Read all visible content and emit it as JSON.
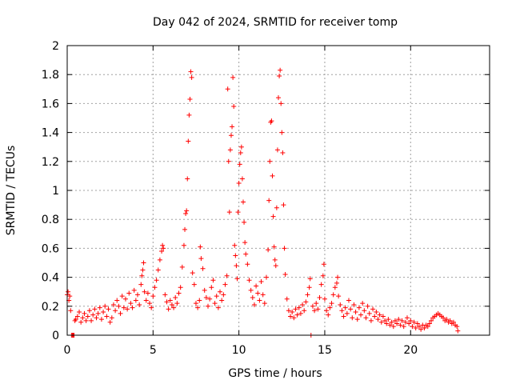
{
  "chart_data": {
    "type": "scatter",
    "title": "Day 042 of 2024, SRMTID for receiver tomp",
    "xlabel": "GPS time / hours",
    "ylabel": "SRMTID / TECUs",
    "xlim": [
      0,
      24.6
    ],
    "ylim": [
      0,
      2
    ],
    "x_ticks": [
      0,
      5,
      10,
      15,
      20
    ],
    "x_tick_labels": [
      "0",
      "5",
      "10",
      "15",
      "20"
    ],
    "y_ticks": [
      0,
      0.2,
      0.4,
      0.6,
      0.8,
      1,
      1.2,
      1.4,
      1.6,
      1.8,
      2
    ],
    "y_tick_labels": [
      "0",
      "0.2",
      "0.4",
      "0.6",
      "0.8",
      "1",
      "1.2",
      "1.4",
      "1.6",
      "1.8",
      "2"
    ],
    "grid": true,
    "marker": "+",
    "series": [
      {
        "name": "SRMTID",
        "color": "#ff0000",
        "points": [
          [
            0.0,
            0.28
          ],
          [
            0.05,
            0.3
          ],
          [
            0.1,
            0.24
          ],
          [
            0.15,
            0.27
          ],
          [
            0.2,
            0.17
          ],
          [
            0.25,
            0.0
          ],
          [
            0.3,
            0.0
          ],
          [
            0.35,
            0.0
          ],
          [
            0.4,
            0.0
          ],
          [
            0.45,
            0.1
          ],
          [
            0.5,
            0.11
          ],
          [
            0.6,
            0.13
          ],
          [
            0.7,
            0.16
          ],
          [
            0.8,
            0.09
          ],
          [
            0.9,
            0.12
          ],
          [
            1.0,
            0.15
          ],
          [
            1.1,
            0.1
          ],
          [
            1.2,
            0.13
          ],
          [
            1.3,
            0.17
          ],
          [
            1.4,
            0.1
          ],
          [
            1.5,
            0.14
          ],
          [
            1.6,
            0.18
          ],
          [
            1.7,
            0.12
          ],
          [
            1.8,
            0.15
          ],
          [
            1.9,
            0.19
          ],
          [
            2.0,
            0.11
          ],
          [
            2.1,
            0.16
          ],
          [
            2.2,
            0.2
          ],
          [
            2.3,
            0.13
          ],
          [
            2.4,
            0.18
          ],
          [
            2.5,
            0.09
          ],
          [
            2.6,
            0.12
          ],
          [
            2.7,
            0.21
          ],
          [
            2.8,
            0.17
          ],
          [
            2.9,
            0.24
          ],
          [
            3.0,
            0.2
          ],
          [
            3.1,
            0.15
          ],
          [
            3.2,
            0.27
          ],
          [
            3.3,
            0.19
          ],
          [
            3.4,
            0.25
          ],
          [
            3.5,
            0.18
          ],
          [
            3.6,
            0.29
          ],
          [
            3.7,
            0.22
          ],
          [
            3.8,
            0.19
          ],
          [
            3.9,
            0.31
          ],
          [
            4.0,
            0.24
          ],
          [
            4.1,
            0.28
          ],
          [
            4.2,
            0.21
          ],
          [
            4.3,
            0.35
          ],
          [
            4.35,
            0.41
          ],
          [
            4.4,
            0.45
          ],
          [
            4.45,
            0.5
          ],
          [
            4.5,
            0.3
          ],
          [
            4.6,
            0.24
          ],
          [
            4.7,
            0.29
          ],
          [
            4.8,
            0.22
          ],
          [
            4.9,
            0.19
          ],
          [
            5.0,
            0.27
          ],
          [
            5.1,
            0.33
          ],
          [
            5.2,
            0.38
          ],
          [
            5.3,
            0.45
          ],
          [
            5.4,
            0.52
          ],
          [
            5.5,
            0.58
          ],
          [
            5.55,
            0.62
          ],
          [
            5.6,
            0.6
          ],
          [
            5.7,
            0.28
          ],
          [
            5.8,
            0.23
          ],
          [
            5.9,
            0.18
          ],
          [
            6.0,
            0.24
          ],
          [
            6.1,
            0.21
          ],
          [
            6.2,
            0.19
          ],
          [
            6.3,
            0.26
          ],
          [
            6.4,
            0.22
          ],
          [
            6.5,
            0.29
          ],
          [
            6.6,
            0.33
          ],
          [
            6.7,
            0.47
          ],
          [
            6.8,
            0.62
          ],
          [
            6.85,
            0.73
          ],
          [
            6.9,
            0.84
          ],
          [
            6.95,
            0.86
          ],
          [
            7.0,
            1.08
          ],
          [
            7.05,
            1.34
          ],
          [
            7.1,
            1.52
          ],
          [
            7.15,
            1.63
          ],
          [
            7.2,
            1.82
          ],
          [
            7.25,
            1.78
          ],
          [
            7.3,
            0.43
          ],
          [
            7.4,
            0.35
          ],
          [
            7.5,
            0.22
          ],
          [
            7.6,
            0.19
          ],
          [
            7.7,
            0.24
          ],
          [
            7.75,
            0.61
          ],
          [
            7.8,
            0.53
          ],
          [
            7.9,
            0.46
          ],
          [
            8.0,
            0.31
          ],
          [
            8.1,
            0.26
          ],
          [
            8.2,
            0.2
          ],
          [
            8.3,
            0.25
          ],
          [
            8.4,
            0.33
          ],
          [
            8.5,
            0.38
          ],
          [
            8.6,
            0.22
          ],
          [
            8.7,
            0.27
          ],
          [
            8.8,
            0.19
          ],
          [
            8.9,
            0.3
          ],
          [
            9.0,
            0.24
          ],
          [
            9.1,
            0.28
          ],
          [
            9.2,
            0.35
          ],
          [
            9.3,
            0.41
          ],
          [
            9.35,
            1.7
          ],
          [
            9.4,
            1.2
          ],
          [
            9.45,
            0.85
          ],
          [
            9.5,
            1.28
          ],
          [
            9.55,
            1.38
          ],
          [
            9.6,
            1.44
          ],
          [
            9.65,
            1.78
          ],
          [
            9.7,
            1.58
          ],
          [
            9.75,
            0.62
          ],
          [
            9.8,
            0.55
          ],
          [
            9.85,
            0.48
          ],
          [
            9.9,
            0.39
          ],
          [
            9.95,
            0.85
          ],
          [
            10.0,
            1.05
          ],
          [
            10.05,
            1.18
          ],
          [
            10.1,
            1.26
          ],
          [
            10.15,
            1.3
          ],
          [
            10.2,
            1.08
          ],
          [
            10.25,
            0.92
          ],
          [
            10.3,
            0.78
          ],
          [
            10.35,
            0.64
          ],
          [
            10.4,
            0.56
          ],
          [
            10.5,
            0.49
          ],
          [
            10.6,
            0.38
          ],
          [
            10.7,
            0.31
          ],
          [
            10.8,
            0.26
          ],
          [
            10.9,
            0.21
          ],
          [
            11.0,
            0.34
          ],
          [
            11.1,
            0.29
          ],
          [
            11.2,
            0.24
          ],
          [
            11.3,
            0.37
          ],
          [
            11.4,
            0.28
          ],
          [
            11.5,
            0.22
          ],
          [
            11.6,
            0.4
          ],
          [
            11.7,
            0.59
          ],
          [
            11.75,
            0.93
          ],
          [
            11.8,
            1.2
          ],
          [
            11.85,
            1.47
          ],
          [
            11.9,
            1.48
          ],
          [
            11.95,
            1.1
          ],
          [
            12.0,
            0.82
          ],
          [
            12.05,
            0.61
          ],
          [
            12.1,
            0.52
          ],
          [
            12.15,
            0.48
          ],
          [
            12.2,
            0.88
          ],
          [
            12.25,
            1.28
          ],
          [
            12.3,
            1.64
          ],
          [
            12.35,
            1.79
          ],
          [
            12.4,
            1.83
          ],
          [
            12.45,
            1.6
          ],
          [
            12.5,
            1.4
          ],
          [
            12.55,
            1.26
          ],
          [
            12.6,
            0.9
          ],
          [
            12.65,
            0.6
          ],
          [
            12.7,
            0.42
          ],
          [
            12.8,
            0.25
          ],
          [
            12.9,
            0.17
          ],
          [
            13.0,
            0.13
          ],
          [
            13.1,
            0.16
          ],
          [
            13.2,
            0.12
          ],
          [
            13.3,
            0.18
          ],
          [
            13.4,
            0.14
          ],
          [
            13.5,
            0.19
          ],
          [
            13.6,
            0.15
          ],
          [
            13.7,
            0.21
          ],
          [
            13.8,
            0.17
          ],
          [
            13.9,
            0.23
          ],
          [
            14.0,
            0.28
          ],
          [
            14.1,
            0.33
          ],
          [
            14.15,
            0.39
          ],
          [
            14.2,
            0.0
          ],
          [
            14.3,
            0.2
          ],
          [
            14.4,
            0.17
          ],
          [
            14.5,
            0.22
          ],
          [
            14.6,
            0.18
          ],
          [
            14.7,
            0.26
          ],
          [
            14.8,
            0.35
          ],
          [
            14.9,
            0.41
          ],
          [
            14.95,
            0.49
          ],
          [
            15.0,
            0.25
          ],
          [
            15.1,
            0.17
          ],
          [
            15.2,
            0.14
          ],
          [
            15.3,
            0.19
          ],
          [
            15.4,
            0.22
          ],
          [
            15.5,
            0.28
          ],
          [
            15.6,
            0.33
          ],
          [
            15.7,
            0.36
          ],
          [
            15.75,
            0.4
          ],
          [
            15.8,
            0.27
          ],
          [
            15.9,
            0.21
          ],
          [
            16.0,
            0.17
          ],
          [
            16.1,
            0.13
          ],
          [
            16.2,
            0.19
          ],
          [
            16.3,
            0.15
          ],
          [
            16.4,
            0.24
          ],
          [
            16.5,
            0.18
          ],
          [
            16.6,
            0.12
          ],
          [
            16.7,
            0.21
          ],
          [
            16.8,
            0.16
          ],
          [
            16.9,
            0.11
          ],
          [
            17.0,
            0.19
          ],
          [
            17.1,
            0.14
          ],
          [
            17.2,
            0.22
          ],
          [
            17.3,
            0.17
          ],
          [
            17.4,
            0.12
          ],
          [
            17.5,
            0.2
          ],
          [
            17.6,
            0.15
          ],
          [
            17.7,
            0.1
          ],
          [
            17.8,
            0.18
          ],
          [
            17.9,
            0.13
          ],
          [
            18.0,
            0.16
          ],
          [
            18.1,
            0.11
          ],
          [
            18.2,
            0.14
          ],
          [
            18.3,
            0.09
          ],
          [
            18.4,
            0.13
          ],
          [
            18.5,
            0.1
          ],
          [
            18.6,
            0.08
          ],
          [
            18.7,
            0.11
          ],
          [
            18.8,
            0.07
          ],
          [
            18.9,
            0.09
          ],
          [
            19.0,
            0.06
          ],
          [
            19.1,
            0.1
          ],
          [
            19.2,
            0.08
          ],
          [
            19.3,
            0.11
          ],
          [
            19.4,
            0.07
          ],
          [
            19.5,
            0.1
          ],
          [
            19.6,
            0.06
          ],
          [
            19.7,
            0.09
          ],
          [
            19.8,
            0.12
          ],
          [
            19.9,
            0.08
          ],
          [
            20.0,
            0.1
          ],
          [
            20.1,
            0.06
          ],
          [
            20.2,
            0.09
          ],
          [
            20.3,
            0.05
          ],
          [
            20.4,
            0.08
          ],
          [
            20.5,
            0.06
          ],
          [
            20.6,
            0.04
          ],
          [
            20.7,
            0.07
          ],
          [
            20.8,
            0.05
          ],
          [
            20.9,
            0.07
          ],
          [
            21.0,
            0.06
          ],
          [
            21.1,
            0.08
          ],
          [
            21.2,
            0.1
          ],
          [
            21.3,
            0.12
          ],
          [
            21.4,
            0.13
          ],
          [
            21.5,
            0.14
          ],
          [
            21.6,
            0.15
          ],
          [
            21.7,
            0.14
          ],
          [
            21.8,
            0.13
          ],
          [
            21.9,
            0.12
          ],
          [
            22.0,
            0.1
          ],
          [
            22.1,
            0.11
          ],
          [
            22.2,
            0.09
          ],
          [
            22.3,
            0.1
          ],
          [
            22.4,
            0.08
          ],
          [
            22.5,
            0.09
          ],
          [
            22.6,
            0.07
          ],
          [
            22.7,
            0.06
          ],
          [
            22.75,
            0.03
          ]
        ]
      }
    ]
  }
}
